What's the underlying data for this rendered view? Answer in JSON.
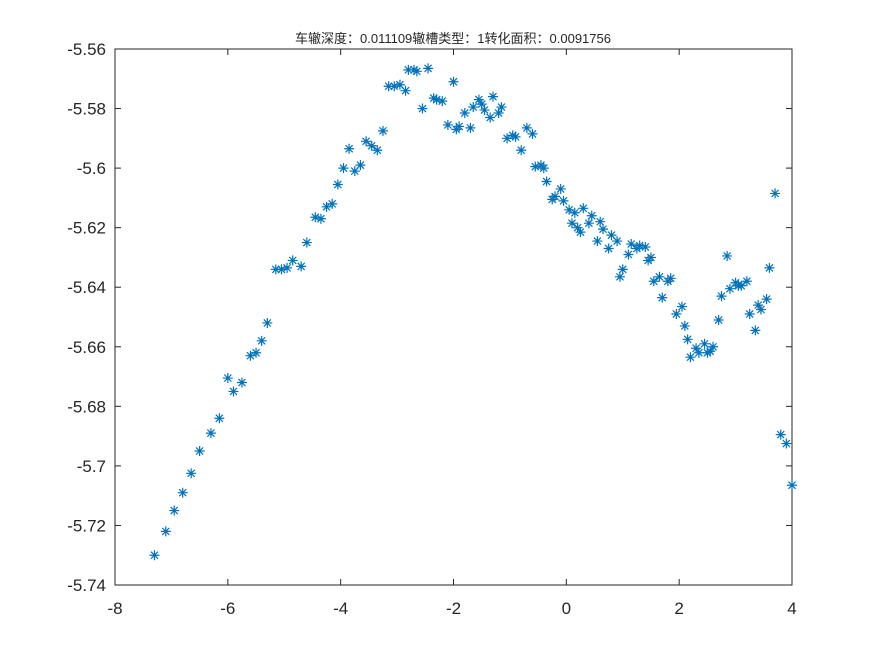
{
  "chart_data": {
    "type": "scatter",
    "title": "车辙深度：0.011109辙槽类型：1转化面积：0.0091756",
    "xlabel": "",
    "ylabel": "",
    "xlim": [
      -8,
      4
    ],
    "ylim": [
      -5.74,
      -5.56
    ],
    "xticks": [
      "-8",
      "-6",
      "-4",
      "-2",
      "0",
      "2",
      "4"
    ],
    "yticks": [
      "-5.56",
      "-5.58",
      "-5.6",
      "-5.62",
      "-5.64",
      "-5.66",
      "-5.68",
      "-5.7",
      "-5.72",
      "-5.74"
    ],
    "grid": false,
    "marker": "*",
    "marker_color": "#0072BD",
    "series": [
      {
        "points": [
          [
            -7.3,
            -5.73
          ],
          [
            -7.1,
            -5.722
          ],
          [
            -6.95,
            -5.715
          ],
          [
            -6.8,
            -5.709
          ],
          [
            -6.65,
            -5.7025
          ],
          [
            -6.5,
            -5.695
          ],
          [
            -6.3,
            -5.689
          ],
          [
            -6.15,
            -5.684
          ],
          [
            -6.0,
            -5.6705
          ],
          [
            -5.9,
            -5.675
          ],
          [
            -5.75,
            -5.672
          ],
          [
            -5.6,
            -5.663
          ],
          [
            -5.5,
            -5.662
          ],
          [
            -5.4,
            -5.658
          ],
          [
            -5.3,
            -5.652
          ],
          [
            -5.15,
            -5.634
          ],
          [
            -5.05,
            -5.634
          ],
          [
            -4.95,
            -5.6335
          ],
          [
            -4.85,
            -5.631
          ],
          [
            -4.7,
            -5.633
          ],
          [
            -4.6,
            -5.625
          ],
          [
            -4.45,
            -5.6165
          ],
          [
            -4.35,
            -5.617
          ],
          [
            -4.25,
            -5.613
          ],
          [
            -4.15,
            -5.612
          ],
          [
            -4.05,
            -5.6055
          ],
          [
            -3.95,
            -5.6
          ],
          [
            -3.85,
            -5.5935
          ],
          [
            -3.75,
            -5.601
          ],
          [
            -3.65,
            -5.599
          ],
          [
            -3.55,
            -5.591
          ],
          [
            -3.45,
            -5.5925
          ],
          [
            -3.35,
            -5.594
          ],
          [
            -3.25,
            -5.5875
          ],
          [
            -3.15,
            -5.5725
          ],
          [
            -3.05,
            -5.5725
          ],
          [
            -2.95,
            -5.572
          ],
          [
            -2.85,
            -5.574
          ],
          [
            -2.8,
            -5.567
          ],
          [
            -2.7,
            -5.567
          ],
          [
            -2.65,
            -5.5675
          ],
          [
            -2.55,
            -5.58
          ],
          [
            -2.45,
            -5.5665
          ],
          [
            -2.35,
            -5.5765
          ],
          [
            -2.3,
            -5.577
          ],
          [
            -2.2,
            -5.5775
          ],
          [
            -2.1,
            -5.5855
          ],
          [
            -2.0,
            -5.571
          ],
          [
            -1.95,
            -5.587
          ],
          [
            -1.9,
            -5.586
          ],
          [
            -1.8,
            -5.5815
          ],
          [
            -1.7,
            -5.5865
          ],
          [
            -1.65,
            -5.5795
          ],
          [
            -1.55,
            -5.577
          ],
          [
            -1.5,
            -5.5785
          ],
          [
            -1.45,
            -5.5805
          ],
          [
            -1.35,
            -5.583
          ],
          [
            -1.3,
            -5.576
          ],
          [
            -1.2,
            -5.5815
          ],
          [
            -1.15,
            -5.5795
          ],
          [
            -1.05,
            -5.59
          ],
          [
            -0.95,
            -5.589
          ],
          [
            -0.9,
            -5.5895
          ],
          [
            -0.8,
            -5.594
          ],
          [
            -0.7,
            -5.5865
          ],
          [
            -0.6,
            -5.5885
          ],
          [
            -0.55,
            -5.5995
          ],
          [
            -0.45,
            -5.599
          ],
          [
            -0.4,
            -5.6
          ],
          [
            -0.35,
            -5.6045
          ],
          [
            -0.25,
            -5.6105
          ],
          [
            -0.2,
            -5.6095
          ],
          [
            -0.1,
            -5.607
          ],
          [
            -0.05,
            -5.611
          ],
          [
            0.05,
            -5.614
          ],
          [
            0.1,
            -5.6185
          ],
          [
            0.15,
            -5.615
          ],
          [
            0.2,
            -5.62
          ],
          [
            0.25,
            -5.6215
          ],
          [
            0.3,
            -5.6135
          ],
          [
            0.4,
            -5.6185
          ],
          [
            0.45,
            -5.616
          ],
          [
            0.55,
            -5.6245
          ],
          [
            0.6,
            -5.618
          ],
          [
            0.65,
            -5.6205
          ],
          [
            0.75,
            -5.627
          ],
          [
            0.8,
            -5.6225
          ],
          [
            0.9,
            -5.6245
          ],
          [
            0.95,
            -5.6365
          ],
          [
            1.0,
            -5.634
          ],
          [
            1.1,
            -5.629
          ],
          [
            1.15,
            -5.6255
          ],
          [
            1.25,
            -5.627
          ],
          [
            1.3,
            -5.626
          ],
          [
            1.4,
            -5.6265
          ],
          [
            1.45,
            -5.631
          ],
          [
            1.5,
            -5.63
          ],
          [
            1.55,
            -5.638
          ],
          [
            1.65,
            -5.6365
          ],
          [
            1.7,
            -5.6435
          ],
          [
            1.8,
            -5.638
          ],
          [
            1.85,
            -5.637
          ],
          [
            1.95,
            -5.649
          ],
          [
            2.05,
            -5.6465
          ],
          [
            2.1,
            -5.653
          ],
          [
            2.15,
            -5.6575
          ],
          [
            2.2,
            -5.6635
          ],
          [
            2.3,
            -5.6605
          ],
          [
            2.35,
            -5.662
          ],
          [
            2.45,
            -5.659
          ],
          [
            2.5,
            -5.662
          ],
          [
            2.55,
            -5.6615
          ],
          [
            2.6,
            -5.66
          ],
          [
            2.7,
            -5.651
          ],
          [
            2.75,
            -5.643
          ],
          [
            2.85,
            -5.6295
          ],
          [
            2.9,
            -5.6405
          ],
          [
            3.0,
            -5.6385
          ],
          [
            3.05,
            -5.6395
          ],
          [
            3.1,
            -5.6395
          ],
          [
            3.2,
            -5.638
          ],
          [
            3.25,
            -5.649
          ],
          [
            3.35,
            -5.6545
          ],
          [
            3.4,
            -5.646
          ],
          [
            3.45,
            -5.6475
          ],
          [
            3.55,
            -5.644
          ],
          [
            3.6,
            -5.6335
          ],
          [
            3.7,
            -5.6085
          ],
          [
            3.8,
            -5.6895
          ],
          [
            3.9,
            -5.6925
          ],
          [
            4.0,
            -5.7065
          ]
        ]
      }
    ]
  }
}
